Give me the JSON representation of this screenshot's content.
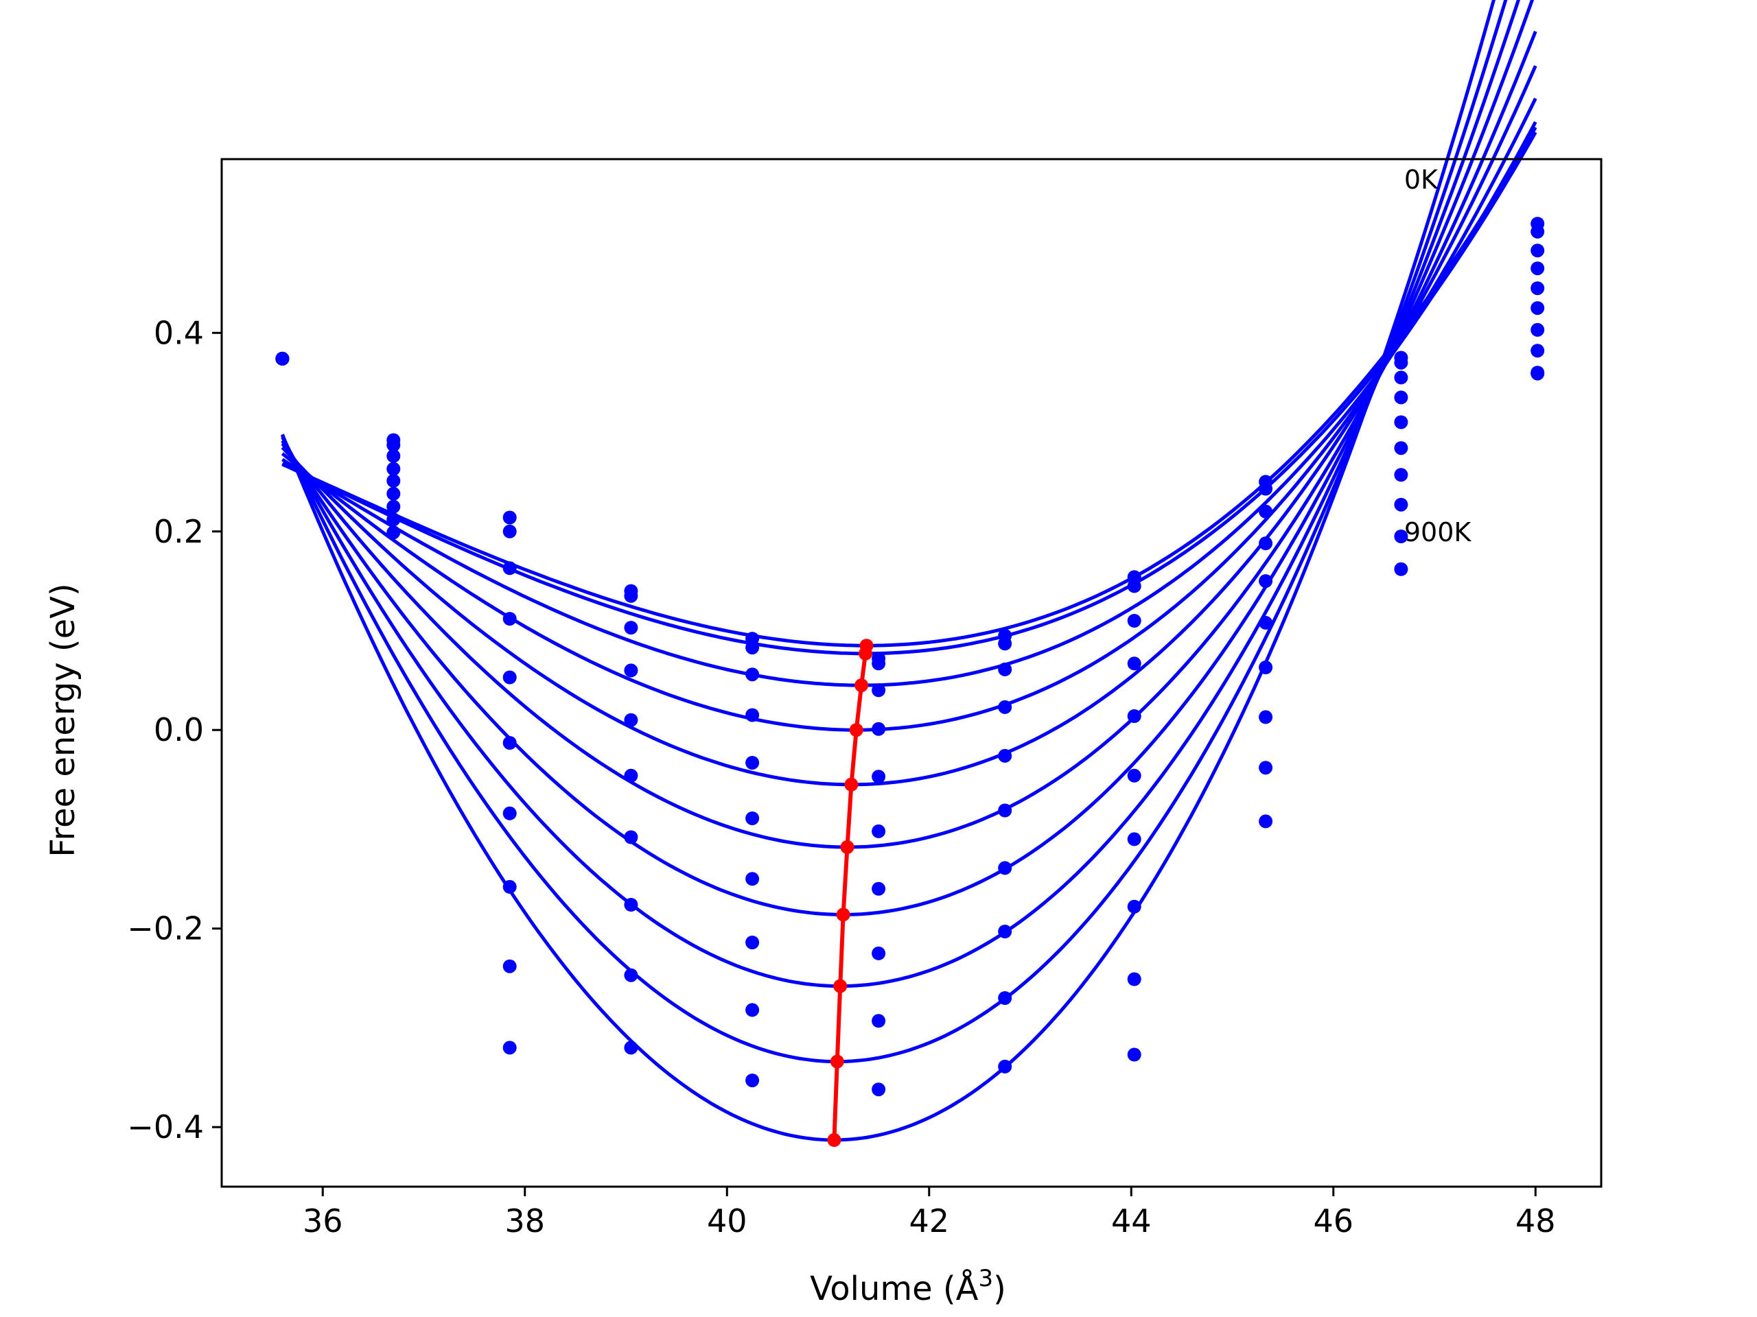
{
  "chart_data": {
    "type": "line",
    "title": "",
    "xlabel": "Volume (Å",
    "xlabel_sup": "3",
    "xlabel_close": ")",
    "ylabel": "Free energy (eV)",
    "xlim": [
      35.0,
      48.65
    ],
    "ylim": [
      -0.46,
      0.575
    ],
    "xticks": [
      36,
      38,
      40,
      42,
      44,
      46,
      48
    ],
    "yticks": [
      -0.4,
      -0.2,
      0.0,
      0.2,
      0.4
    ],
    "ytick_labels": [
      "−0.4",
      "−0.2",
      "0.0",
      "0.2",
      "0.4"
    ],
    "grid": false,
    "legend": "none",
    "annotations": [
      {
        "text": "0K",
        "x": 46.7,
        "y": 0.555
      },
      {
        "text": "900K",
        "x": 46.7,
        "y": 0.2
      }
    ],
    "colors": {
      "fit": "#0000ff",
      "points": "#0000ff",
      "min_line": "#ff0000"
    },
    "fit_range": [
      35.6,
      48.0
    ],
    "volumes": [
      35.6,
      36.7,
      37.85,
      39.05,
      40.25,
      41.5,
      42.75,
      44.03,
      45.33,
      46.67,
      48.02
    ],
    "series": [
      {
        "name": "0K",
        "v0": 41.38,
        "e0": 0.085,
        "a": 0.00847,
        "b": 0.00052,
        "points": [
          0.374,
          0.292,
          0.214,
          0.14,
          0.092,
          0.072,
          0.095,
          0.154,
          0.25,
          0.375,
          0.51
        ]
      },
      {
        "name": "100K",
        "v0": 41.37,
        "e0": 0.077,
        "a": 0.00863,
        "b": 0.0005,
        "points": [
          0.374,
          0.287,
          0.2,
          0.135,
          0.083,
          0.067,
          0.087,
          0.145,
          0.243,
          0.37,
          0.502
        ]
      },
      {
        "name": "200K",
        "v0": 41.33,
        "e0": 0.045,
        "a": 0.00962,
        "b": 0.00047,
        "points": [
          0.374,
          0.276,
          0.163,
          0.103,
          0.056,
          0.04,
          0.061,
          0.11,
          0.22,
          0.355,
          0.483
        ]
      },
      {
        "name": "300K",
        "v0": 41.28,
        "e0": 0.0,
        "a": 0.01113,
        "b": 0.00044,
        "points": [
          0.374,
          0.263,
          0.112,
          0.06,
          0.015,
          0.001,
          0.023,
          0.067,
          0.188,
          0.335,
          0.465
        ]
      },
      {
        "name": "400K",
        "v0": 41.23,
        "e0": -0.055,
        "a": 0.01302,
        "b": 0.00041,
        "points": [
          0.374,
          0.251,
          0.053,
          0.01,
          -0.033,
          -0.047,
          -0.026,
          0.014,
          0.15,
          0.31,
          0.445
        ]
      },
      {
        "name": "500K",
        "v0": 41.19,
        "e0": -0.118,
        "a": 0.01513,
        "b": 0.00038,
        "points": [
          0.374,
          0.238,
          -0.013,
          -0.046,
          -0.089,
          -0.102,
          -0.081,
          -0.046,
          0.108,
          0.284,
          0.425
        ]
      },
      {
        "name": "600K",
        "v0": 41.15,
        "e0": -0.186,
        "a": 0.01744,
        "b": 0.00035,
        "points": [
          0.374,
          0.225,
          -0.084,
          -0.108,
          -0.15,
          -0.16,
          -0.139,
          -0.11,
          0.063,
          0.257,
          0.403
        ]
      },
      {
        "name": "700K",
        "v0": 41.12,
        "e0": -0.258,
        "a": 0.01991,
        "b": 0.00032,
        "points": [
          0.374,
          0.212,
          -0.158,
          -0.176,
          -0.214,
          -0.225,
          -0.203,
          -0.178,
          0.013,
          0.227,
          0.382
        ]
      },
      {
        "name": "800K",
        "v0": 41.09,
        "e0": -0.334,
        "a": 0.02252,
        "b": 0.00029,
        "points": [
          0.374,
          0.199,
          -0.238,
          -0.247,
          -0.282,
          -0.293,
          -0.27,
          -0.251,
          -0.038,
          0.195,
          0.36
        ]
      },
      {
        "name": "900K",
        "v0": 41.06,
        "e0": -0.413,
        "a": 0.02526,
        "b": 0.00026,
        "points": [
          0.374,
          null,
          -0.32,
          -0.32,
          -0.353,
          -0.362,
          -0.339,
          -0.327,
          -0.092,
          0.162,
          0.359
        ]
      }
    ]
  }
}
